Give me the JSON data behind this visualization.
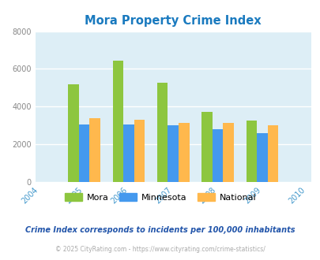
{
  "title": "Mora Property Crime Index",
  "title_color": "#1a7abf",
  "years": [
    "2004",
    "2005",
    "2006",
    "2007",
    "2008",
    "2009",
    "2010"
  ],
  "categories": [
    2005,
    2006,
    2007,
    2008,
    2009
  ],
  "mora": [
    5200,
    6450,
    5250,
    3700,
    3250
  ],
  "minnesota": [
    3050,
    3050,
    3000,
    2800,
    2600
  ],
  "national": [
    3400,
    3300,
    3150,
    3150,
    3000
  ],
  "mora_color": "#8dc63f",
  "minnesota_color": "#4499ee",
  "national_color": "#ffb84d",
  "bg_color": "#ddeef6",
  "ylim": [
    0,
    8000
  ],
  "yticks": [
    0,
    2000,
    4000,
    6000,
    8000
  ],
  "grid_color": "#ffffff",
  "xtick_color": "#4499cc",
  "ytick_color": "#888888",
  "footer_text1": "Crime Index corresponds to incidents per 100,000 inhabitants",
  "footer_text2": "© 2025 CityRating.com - https://www.cityrating.com/crime-statistics/",
  "footer_color1": "#2255aa",
  "footer_color2": "#aaaaaa",
  "legend_labels": [
    "Mora",
    "Minnesota",
    "National"
  ]
}
